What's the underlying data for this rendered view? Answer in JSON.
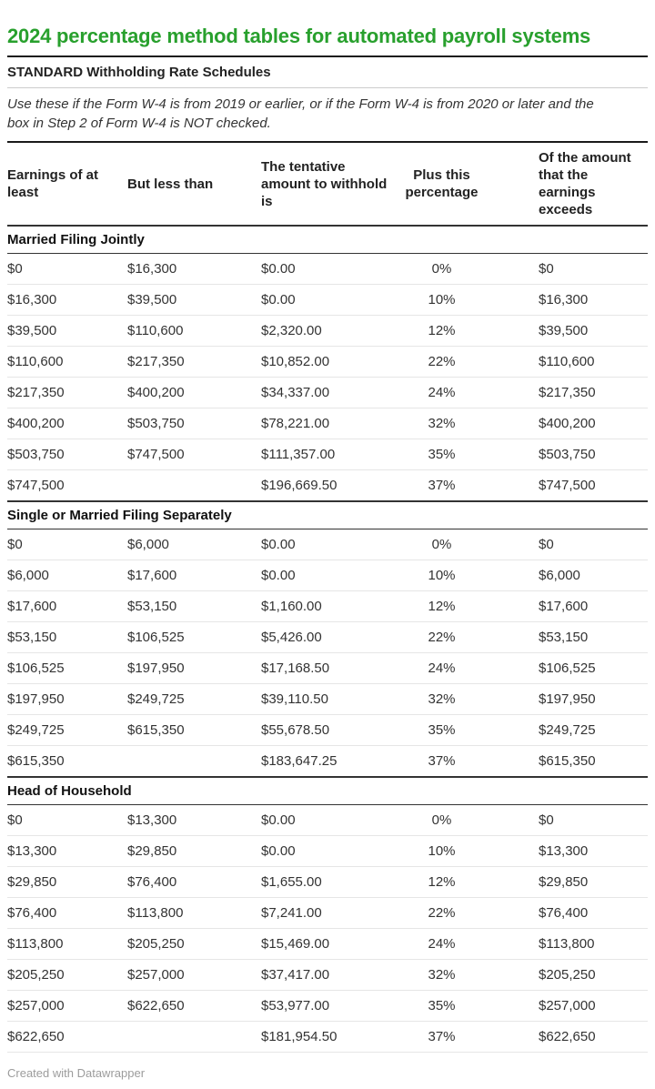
{
  "title": "2024 percentage method tables for automated payroll systems",
  "intro": {
    "heading": "STANDARD Withholding Rate Schedules",
    "note": "Use these if the Form W-4 is from 2019 or earlier, or if the Form W-4 is from 2020 or later and the box in Step 2 of Form W-4 is NOT checked."
  },
  "footer": {
    "attribution": "Created with Datawrapper"
  },
  "colors": {
    "title_green": "#28a02d",
    "rule_dark": "#1a1a1a",
    "rule_light": "#cccccc",
    "section_border": "#333333",
    "row_divider": "#e6e6e6",
    "body_text": "#333333",
    "footer_gray": "#9c9c9c"
  },
  "chart_data": {
    "type": "table",
    "title": "2024 percentage method tables for automated payroll systems",
    "columns": [
      "Earnings of at least",
      "But less than",
      "The tentative amount to withhold is",
      "Plus this percentage",
      "Of the amount that the earnings exceeds"
    ],
    "column_alignments": [
      "left",
      "left",
      "left",
      "center",
      "left"
    ],
    "sections": [
      {
        "label": "Married Filing Jointly",
        "rows": [
          [
            "$0",
            "$16,300",
            "$0.00",
            "0%",
            "$0"
          ],
          [
            "$16,300",
            "$39,500",
            "$0.00",
            "10%",
            "$16,300"
          ],
          [
            "$39,500",
            "$110,600",
            "$2,320.00",
            "12%",
            "$39,500"
          ],
          [
            "$110,600",
            "$217,350",
            "$10,852.00",
            "22%",
            "$110,600"
          ],
          [
            "$217,350",
            "$400,200",
            "$34,337.00",
            "24%",
            "$217,350"
          ],
          [
            "$400,200",
            "$503,750",
            "$78,221.00",
            "32%",
            "$400,200"
          ],
          [
            "$503,750",
            "$747,500",
            "$111,357.00",
            "35%",
            "$503,750"
          ],
          [
            "$747,500",
            "",
            "$196,669.50",
            "37%",
            "$747,500"
          ]
        ]
      },
      {
        "label": "Single or Married Filing Separately",
        "rows": [
          [
            "$0",
            "$6,000",
            "$0.00",
            "0%",
            "$0"
          ],
          [
            "$6,000",
            "$17,600",
            "$0.00",
            "10%",
            "$6,000"
          ],
          [
            "$17,600",
            "$53,150",
            "$1,160.00",
            "12%",
            "$17,600"
          ],
          [
            "$53,150",
            "$106,525",
            "$5,426.00",
            "22%",
            "$53,150"
          ],
          [
            "$106,525",
            "$197,950",
            "$17,168.50",
            "24%",
            "$106,525"
          ],
          [
            "$197,950",
            "$249,725",
            "$39,110.50",
            "32%",
            "$197,950"
          ],
          [
            "$249,725",
            "$615,350",
            "$55,678.50",
            "35%",
            "$249,725"
          ],
          [
            "$615,350",
            "",
            "$183,647.25",
            "37%",
            "$615,350"
          ]
        ]
      },
      {
        "label": "Head of Household",
        "rows": [
          [
            "$0",
            "$13,300",
            "$0.00",
            "0%",
            "$0"
          ],
          [
            "$13,300",
            "$29,850",
            "$0.00",
            "10%",
            "$13,300"
          ],
          [
            "$29,850",
            "$76,400",
            "$1,655.00",
            "12%",
            "$29,850"
          ],
          [
            "$76,400",
            "$113,800",
            "$7,241.00",
            "22%",
            "$76,400"
          ],
          [
            "$113,800",
            "$205,250",
            "$15,469.00",
            "24%",
            "$113,800"
          ],
          [
            "$205,250",
            "$257,000",
            "$37,417.00",
            "32%",
            "$205,250"
          ],
          [
            "$257,000",
            "$622,650",
            "$53,977.00",
            "35%",
            "$257,000"
          ],
          [
            "$622,650",
            "",
            "$181,954.50",
            "37%",
            "$622,650"
          ]
        ]
      }
    ]
  }
}
